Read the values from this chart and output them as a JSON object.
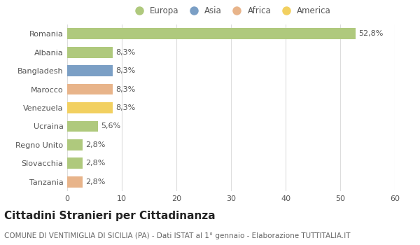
{
  "countries": [
    "Romania",
    "Albania",
    "Bangladesh",
    "Marocco",
    "Venezuela",
    "Ucraina",
    "Regno Unito",
    "Slovacchia",
    "Tanzania"
  ],
  "values": [
    52.8,
    8.3,
    8.3,
    8.3,
    8.3,
    5.6,
    2.8,
    2.8,
    2.8
  ],
  "labels": [
    "52,8%",
    "8,3%",
    "8,3%",
    "8,3%",
    "8,3%",
    "5,6%",
    "2,8%",
    "2,8%",
    "2,8%"
  ],
  "colors": [
    "#afc97d",
    "#afc97d",
    "#7b9fc5",
    "#e8b48a",
    "#f2d060",
    "#afc97d",
    "#afc97d",
    "#afc97d",
    "#e8b48a"
  ],
  "legend_labels": [
    "Europa",
    "Asia",
    "Africa",
    "America"
  ],
  "legend_colors": [
    "#afc97d",
    "#7b9fc5",
    "#e8b48a",
    "#f2d060"
  ],
  "title": "Cittadini Stranieri per Cittadinanza",
  "subtitle": "COMUNE DI VENTIMIGLIA DI SICILIA (PA) - Dati ISTAT al 1° gennaio - Elaborazione TUTTITALIA.IT",
  "xlim": [
    0,
    60
  ],
  "xticks": [
    0,
    10,
    20,
    30,
    40,
    50,
    60
  ],
  "background_color": "#ffffff",
  "grid_color": "#dddddd",
  "bar_height": 0.6,
  "title_fontsize": 11,
  "subtitle_fontsize": 7.5,
  "label_fontsize": 8,
  "tick_fontsize": 8,
  "legend_fontsize": 8.5
}
